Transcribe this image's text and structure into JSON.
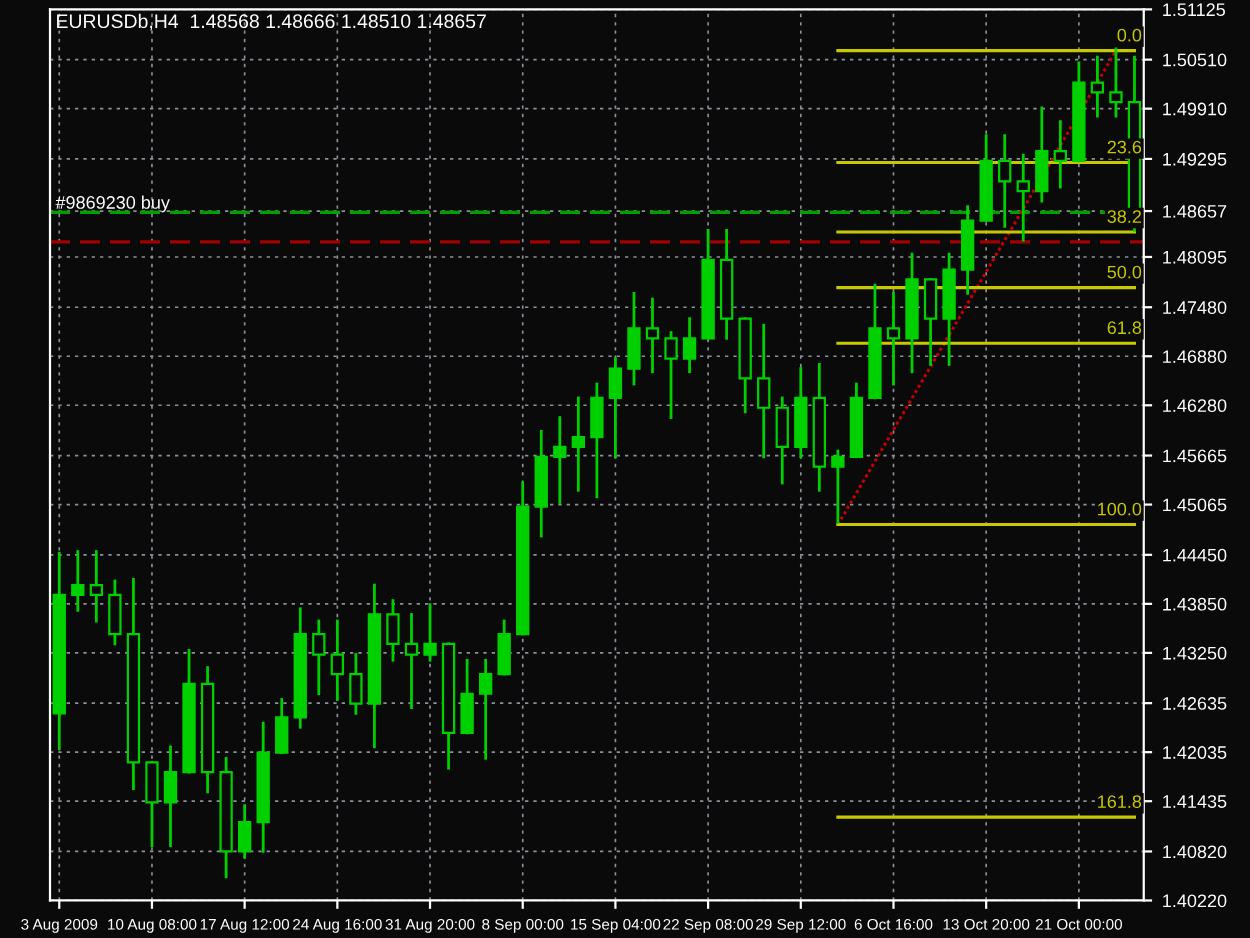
{
  "chart_data": {
    "type": "candlestick",
    "title": "EURUSDb,H4  1.48568 1.48666 1.48510 1.48657",
    "grid": true,
    "categories": [
      "3 Aug 2009",
      null,
      null,
      null,
      null,
      "10 Aug 08:00",
      null,
      null,
      null,
      null,
      "17 Aug 12:00",
      null,
      null,
      null,
      null,
      "24 Aug 16:00",
      null,
      null,
      null,
      null,
      "31 Aug 20:00",
      null,
      null,
      null,
      null,
      "8 Sep 00:00",
      null,
      null,
      null,
      null,
      "15 Sep 04:00",
      null,
      null,
      null,
      null,
      "22 Sep 08:00",
      null,
      null,
      null,
      null,
      "29 Sep 12:00",
      null,
      null,
      null,
      null,
      "6 Oct 16:00",
      null,
      null,
      null,
      null,
      "13 Oct 20:00",
      null,
      null,
      null,
      null,
      "21 Oct 00:00",
      null,
      null,
      null
    ],
    "ylim": [
      1.4022,
      1.51125
    ],
    "yticks": [
      {
        "value": 1.51125,
        "label": "1.51125"
      },
      {
        "value": 1.5051,
        "label": "1.50510"
      },
      {
        "value": 1.4991,
        "label": "1.49910"
      },
      {
        "value": 1.49295,
        "label": "1.49295"
      },
      {
        "value": 1.48657,
        "label": "1.48657"
      },
      {
        "value": 1.48095,
        "label": "1.48095"
      },
      {
        "value": 1.4748,
        "label": "1.47480"
      },
      {
        "value": 1.4688,
        "label": "1.46880"
      },
      {
        "value": 1.4628,
        "label": "1.46280"
      },
      {
        "value": 1.45665,
        "label": "1.45665"
      },
      {
        "value": 1.45065,
        "label": "1.45065"
      },
      {
        "value": 1.4445,
        "label": "1.44450"
      },
      {
        "value": 1.4385,
        "label": "1.43850"
      },
      {
        "value": 1.4325,
        "label": "1.43250"
      },
      {
        "value": 1.42635,
        "label": "1.42635"
      },
      {
        "value": 1.42035,
        "label": "1.42035"
      },
      {
        "value": 1.41435,
        "label": "1.41435"
      },
      {
        "value": 1.4082,
        "label": "1.40820"
      },
      {
        "value": 1.4022,
        "label": "1.40220"
      }
    ],
    "ref_lines": [
      {
        "axis": "y",
        "value": 1.4864,
        "label": "#9869230 buy",
        "color": "#00a000",
        "line_style": "dashed"
      },
      {
        "axis": "y",
        "value": 1.4828,
        "color": "#a00000",
        "line_style": "dashed"
      }
    ],
    "series": [
      {
        "color": "#00d000",
        "ohlc": [
          [
            1.4251,
            1.4447,
            1.4208,
            1.4396
          ],
          [
            1.4396,
            1.4449,
            1.4377,
            1.4408
          ],
          [
            1.4408,
            1.4449,
            1.4364,
            1.4396
          ],
          [
            1.4396,
            1.4413,
            1.4336,
            1.4348
          ],
          [
            1.4348,
            1.4415,
            1.4159,
            1.4191
          ],
          [
            1.4191,
            1.4191,
            1.4089,
            1.4142
          ],
          [
            1.4142,
            1.421,
            1.4089,
            1.4179
          ],
          [
            1.4179,
            1.4328,
            1.4179,
            1.4287
          ],
          [
            1.4287,
            1.4307,
            1.4155,
            1.4179
          ],
          [
            1.4179,
            1.4196,
            1.4051,
            1.4082
          ],
          [
            1.4082,
            1.4138,
            1.4075,
            1.4118
          ],
          [
            1.4118,
            1.4239,
            1.4082,
            1.4203
          ],
          [
            1.4203,
            1.4268,
            1.4203,
            1.4246
          ],
          [
            1.4246,
            1.4379,
            1.4234,
            1.4348
          ],
          [
            1.4348,
            1.4364,
            1.4275,
            1.4323
          ],
          [
            1.4323,
            1.4364,
            1.4268,
            1.4299
          ],
          [
            1.4299,
            1.4323,
            1.4251,
            1.4263
          ],
          [
            1.4263,
            1.4408,
            1.421,
            1.4372
          ],
          [
            1.4372,
            1.4389,
            1.4316,
            1.4336
          ],
          [
            1.4336,
            1.4372,
            1.4258,
            1.4323
          ],
          [
            1.4323,
            1.4384,
            1.4316,
            1.4336
          ],
          [
            1.4336,
            1.4336,
            1.4184,
            1.4227
          ],
          [
            1.4227,
            1.4316,
            1.4227,
            1.4275
          ],
          [
            1.4275,
            1.4316,
            1.4196,
            1.4299
          ],
          [
            1.4299,
            1.4364,
            1.4299,
            1.4348
          ],
          [
            1.4348,
            1.4533,
            1.4348,
            1.4504
          ],
          [
            1.4504,
            1.4596,
            1.4468,
            1.4565
          ],
          [
            1.4565,
            1.4613,
            1.4509,
            1.4577
          ],
          [
            1.4577,
            1.4637,
            1.4524,
            1.4589
          ],
          [
            1.4589,
            1.4654,
            1.4516,
            1.4637
          ],
          [
            1.4637,
            1.4685,
            1.4565,
            1.4673
          ],
          [
            1.4673,
            1.4765,
            1.4654,
            1.4722
          ],
          [
            1.4722,
            1.4758,
            1.4669,
            1.471
          ],
          [
            1.471,
            1.4717,
            1.4613,
            1.4685
          ],
          [
            1.4685,
            1.4734,
            1.4669,
            1.471
          ],
          [
            1.471,
            1.4842,
            1.471,
            1.4806
          ],
          [
            1.4806,
            1.4842,
            1.471,
            1.4734
          ],
          [
            1.4734,
            1.4734,
            1.462,
            1.4661
          ],
          [
            1.4661,
            1.4726,
            1.4565,
            1.4625
          ],
          [
            1.4625,
            1.4637,
            1.4533,
            1.4577
          ],
          [
            1.4577,
            1.4673,
            1.4565,
            1.4637
          ],
          [
            1.4637,
            1.4678,
            1.4524,
            1.4553
          ],
          [
            1.4553,
            1.4572,
            1.4485,
            1.4565
          ],
          [
            1.4565,
            1.4654,
            1.4565,
            1.4637
          ],
          [
            1.4637,
            1.4775,
            1.4637,
            1.4722
          ],
          [
            1.4722,
            1.4765,
            1.4654,
            1.471
          ],
          [
            1.471,
            1.4813,
            1.4669,
            1.4782
          ],
          [
            1.4782,
            1.4782,
            1.4678,
            1.4734
          ],
          [
            1.4734,
            1.4813,
            1.4678,
            1.4794
          ],
          [
            1.4794,
            1.4871,
            1.4765,
            1.4854
          ],
          [
            1.4854,
            1.4958,
            1.4854,
            1.4927
          ],
          [
            1.4927,
            1.4958,
            1.4847,
            1.4902
          ],
          [
            1.4902,
            1.4934,
            1.483,
            1.489
          ],
          [
            1.489,
            1.4992,
            1.4878,
            1.4939
          ],
          [
            1.4939,
            1.4975,
            1.4895,
            1.4927
          ],
          [
            1.4927,
            1.5047,
            1.4927,
            1.5023
          ],
          [
            1.5023,
            1.5054,
            1.4982,
            1.5011
          ],
          [
            1.5011,
            1.5064,
            1.4982,
            1.4999
          ],
          [
            1.4999,
            1.5054,
            1.4842,
            1.48657
          ]
        ]
      },
      {
        "type": "line",
        "color": "#c80000",
        "line_style": "dotted",
        "values": [
          null,
          null,
          null,
          null,
          null,
          null,
          null,
          null,
          null,
          null,
          null,
          null,
          null,
          null,
          null,
          null,
          null,
          null,
          null,
          null,
          null,
          null,
          null,
          null,
          null,
          null,
          null,
          null,
          null,
          null,
          null,
          null,
          null,
          null,
          null,
          null,
          null,
          null,
          null,
          null,
          null,
          null,
          1.4482,
          null,
          null,
          null,
          null,
          null,
          null,
          null,
          null,
          null,
          null,
          null,
          null,
          null,
          null,
          1.5062,
          null
        ]
      },
      {
        "type": "line",
        "name": "0.0",
        "color": "#c8c800",
        "line_style": "solid",
        "values": [
          null,
          null,
          null,
          null,
          null,
          null,
          null,
          null,
          null,
          null,
          null,
          null,
          null,
          null,
          null,
          null,
          null,
          null,
          null,
          null,
          null,
          null,
          null,
          null,
          null,
          null,
          null,
          null,
          null,
          null,
          null,
          null,
          null,
          null,
          null,
          null,
          null,
          null,
          null,
          null,
          null,
          null,
          1.5062,
          1.5062,
          1.5062,
          1.5062,
          1.5062,
          1.5062,
          1.5062,
          1.5062,
          1.5062,
          1.5062,
          1.5062,
          1.5062,
          1.5062,
          1.5062,
          1.5062,
          1.5062,
          1.5062
        ]
      },
      {
        "type": "line",
        "name": "23.6",
        "color": "#c8c800",
        "line_style": "solid",
        "values": [
          null,
          null,
          null,
          null,
          null,
          null,
          null,
          null,
          null,
          null,
          null,
          null,
          null,
          null,
          null,
          null,
          null,
          null,
          null,
          null,
          null,
          null,
          null,
          null,
          null,
          null,
          null,
          null,
          null,
          null,
          null,
          null,
          null,
          null,
          null,
          null,
          null,
          null,
          null,
          null,
          null,
          null,
          1.4925,
          1.4925,
          1.4925,
          1.4925,
          1.4925,
          1.4925,
          1.4925,
          1.4925,
          1.4925,
          1.4925,
          1.4925,
          1.4925,
          1.4925,
          1.4925,
          1.4925,
          1.4925,
          1.4925
        ]
      },
      {
        "type": "line",
        "name": "38.2",
        "color": "#c8c800",
        "line_style": "solid",
        "values": [
          null,
          null,
          null,
          null,
          null,
          null,
          null,
          null,
          null,
          null,
          null,
          null,
          null,
          null,
          null,
          null,
          null,
          null,
          null,
          null,
          null,
          null,
          null,
          null,
          null,
          null,
          null,
          null,
          null,
          null,
          null,
          null,
          null,
          null,
          null,
          null,
          null,
          null,
          null,
          null,
          null,
          null,
          1.484,
          1.484,
          1.484,
          1.484,
          1.484,
          1.484,
          1.484,
          1.484,
          1.484,
          1.484,
          1.484,
          1.484,
          1.484,
          1.484,
          1.484,
          1.484,
          1.484
        ]
      },
      {
        "type": "line",
        "name": "50.0",
        "color": "#c8c800",
        "line_style": "solid",
        "values": [
          null,
          null,
          null,
          null,
          null,
          null,
          null,
          null,
          null,
          null,
          null,
          null,
          null,
          null,
          null,
          null,
          null,
          null,
          null,
          null,
          null,
          null,
          null,
          null,
          null,
          null,
          null,
          null,
          null,
          null,
          null,
          null,
          null,
          null,
          null,
          null,
          null,
          null,
          null,
          null,
          null,
          null,
          1.4772,
          1.4772,
          1.4772,
          1.4772,
          1.4772,
          1.4772,
          1.4772,
          1.4772,
          1.4772,
          1.4772,
          1.4772,
          1.4772,
          1.4772,
          1.4772,
          1.4772,
          1.4772,
          1.4772
        ]
      },
      {
        "type": "line",
        "name": "61.8",
        "color": "#c8c800",
        "line_style": "solid",
        "values": [
          null,
          null,
          null,
          null,
          null,
          null,
          null,
          null,
          null,
          null,
          null,
          null,
          null,
          null,
          null,
          null,
          null,
          null,
          null,
          null,
          null,
          null,
          null,
          null,
          null,
          null,
          null,
          null,
          null,
          null,
          null,
          null,
          null,
          null,
          null,
          null,
          null,
          null,
          null,
          null,
          null,
          null,
          1.4704,
          1.4704,
          1.4704,
          1.4704,
          1.4704,
          1.4704,
          1.4704,
          1.4704,
          1.4704,
          1.4704,
          1.4704,
          1.4704,
          1.4704,
          1.4704,
          1.4704,
          1.4704,
          1.4704
        ]
      },
      {
        "type": "line",
        "name": "100.0",
        "color": "#c8c800",
        "line_style": "solid",
        "values": [
          null,
          null,
          null,
          null,
          null,
          null,
          null,
          null,
          null,
          null,
          null,
          null,
          null,
          null,
          null,
          null,
          null,
          null,
          null,
          null,
          null,
          null,
          null,
          null,
          null,
          null,
          null,
          null,
          null,
          null,
          null,
          null,
          null,
          null,
          null,
          null,
          null,
          null,
          null,
          null,
          null,
          null,
          1.4482,
          1.4482,
          1.4482,
          1.4482,
          1.4482,
          1.4482,
          1.4482,
          1.4482,
          1.4482,
          1.4482,
          1.4482,
          1.4482,
          1.4482,
          1.4482,
          1.4482,
          1.4482,
          1.4482
        ]
      },
      {
        "type": "line",
        "name": "161.8",
        "color": "#c8c800",
        "line_style": "solid",
        "values": [
          null,
          null,
          null,
          null,
          null,
          null,
          null,
          null,
          null,
          null,
          null,
          null,
          null,
          null,
          null,
          null,
          null,
          null,
          null,
          null,
          null,
          null,
          null,
          null,
          null,
          null,
          null,
          null,
          null,
          null,
          null,
          null,
          null,
          null,
          null,
          null,
          null,
          null,
          null,
          null,
          null,
          null,
          1.4124,
          1.4124,
          1.4124,
          1.4124,
          1.4124,
          1.4124,
          1.4124,
          1.4124,
          1.4124,
          1.4124,
          1.4124,
          1.4124,
          1.4124,
          1.4124,
          1.4124,
          1.4124,
          1.4124
        ]
      }
    ]
  }
}
